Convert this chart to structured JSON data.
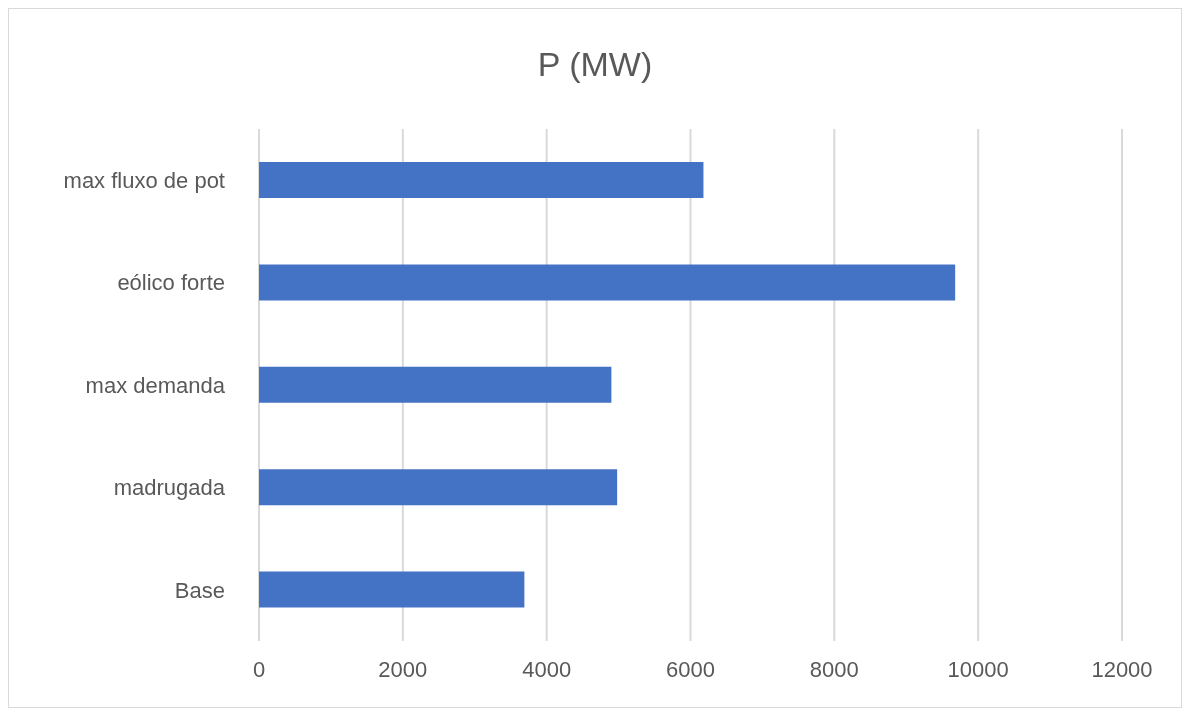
{
  "chart_data": {
    "type": "bar",
    "orientation": "horizontal",
    "title": "P (MW)",
    "categories": [
      "max fluxo de pot",
      "eólico forte",
      "max demanda",
      "madrugada",
      "Base"
    ],
    "values": [
      6180,
      9680,
      4900,
      4980,
      3690
    ],
    "color": "#4472c4",
    "xlim": [
      0,
      12000
    ],
    "xticks": [
      0,
      2000,
      4000,
      6000,
      8000,
      10000,
      12000
    ],
    "grid": "x",
    "legend": false
  }
}
